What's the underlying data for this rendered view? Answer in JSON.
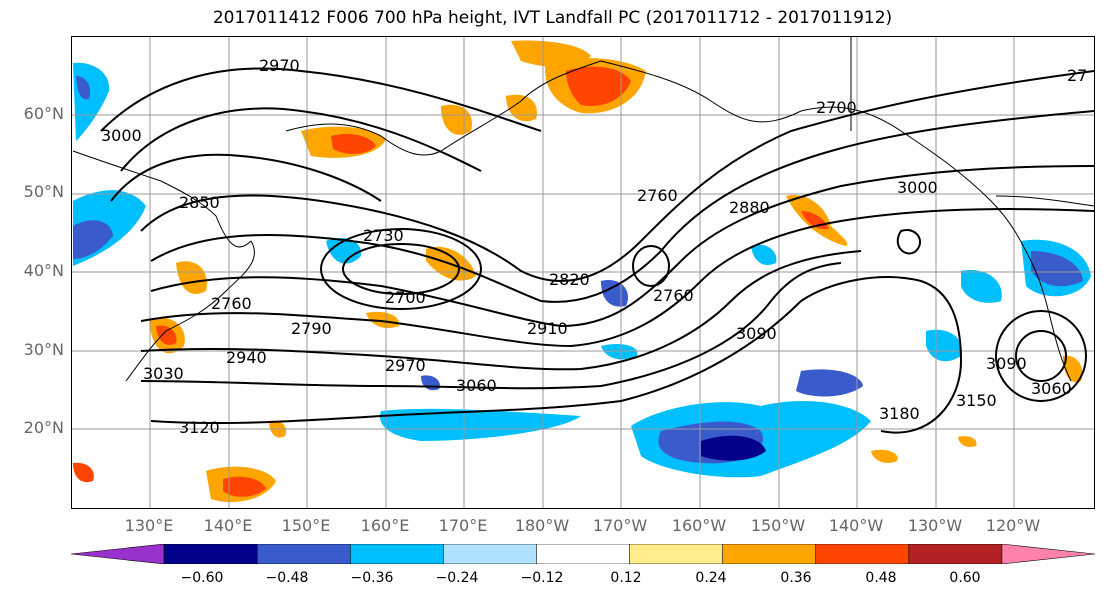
{
  "title": "2017011412 F006 700 hPa height, IVT Landfall PC (2017011712 - 2017011912)",
  "lat_labels": [
    "60°N",
    "50°N",
    "40°N",
    "30°N",
    "20°N"
  ],
  "lon_labels": [
    "130°E",
    "140°E",
    "150°E",
    "160°E",
    "170°E",
    "180°W",
    "170°W",
    "160°W",
    "150°W",
    "140°W",
    "130°W",
    "120°W"
  ],
  "contour_labels": [
    "2970",
    "3000",
    "2850",
    "2730",
    "2700",
    "2760",
    "2820",
    "2760",
    "2700",
    "2880",
    "3000",
    "2760",
    "2790",
    "2910",
    "2940",
    "2970",
    "3060",
    "3030",
    "3120",
    "3090",
    "3180",
    "3150",
    "3060",
    "3090",
    "27"
  ],
  "colorbar": {
    "colors": [
      "#9932CC",
      "#00008B",
      "#3A5BCC",
      "#00BFFF",
      "#B0E2FF",
      "#FFFFFF",
      "#FFEC8B",
      "#FFA500",
      "#FF4500",
      "#B22222",
      "#FF82AB"
    ],
    "ticks": [
      "−0.60",
      "−0.48",
      "−0.36",
      "−0.24",
      "−0.12",
      "0.12",
      "0.24",
      "0.36",
      "0.48",
      "0.60"
    ]
  }
}
